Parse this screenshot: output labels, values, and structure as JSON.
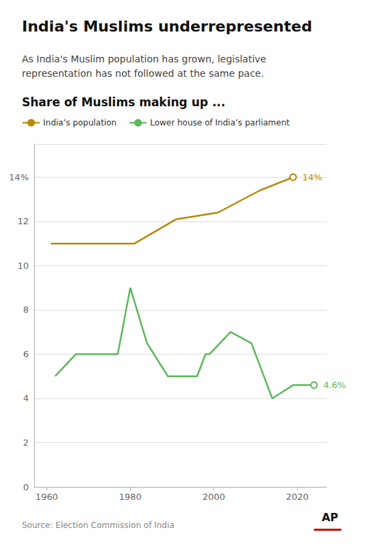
{
  "chart_data": {
    "type": "line",
    "title": "India's Muslims underrepresented",
    "subtitle": "As India's Muslim population has grown, legislative\nrepresentation has not followed at the same pace.",
    "section_title": "Share of Muslims making up ...",
    "source": "Source: Election Commission of India",
    "logo": "AP",
    "series": [
      {
        "name": "India’s population",
        "color": "#b8860b",
        "marker": "circle",
        "x": [
          1961,
          1971,
          1981,
          1991,
          2001,
          2011,
          2019
        ],
        "values": [
          11.0,
          11.0,
          11.0,
          12.1,
          12.4,
          13.4,
          14.0
        ],
        "value_labels": [
          null,
          null,
          null,
          null,
          null,
          null,
          "14%"
        ]
      },
      {
        "name": "Lower house of India’s parliament",
        "color": "#5cb85c",
        "marker": "circle",
        "x": [
          1962,
          1967,
          1971,
          1977,
          1980,
          1984,
          1989,
          1991,
          1996,
          1998,
          1999,
          2004,
          2009,
          2014,
          2019,
          2024
        ],
        "values": [
          5.0,
          6.0,
          6.0,
          6.0,
          9.0,
          6.5,
          5.0,
          5.0,
          5.0,
          6.0,
          6.0,
          7.0,
          6.5,
          4.0,
          4.6,
          4.6
        ],
        "value_labels": [
          null,
          null,
          null,
          null,
          null,
          null,
          null,
          null,
          null,
          null,
          null,
          null,
          null,
          null,
          null,
          "4.6%"
        ]
      }
    ],
    "xlim": [
      1957,
      2027
    ],
    "ylim": [
      0,
      15.5
    ],
    "xticks": [
      1960,
      1980,
      2000,
      2020
    ],
    "yticks": [
      0,
      2,
      4,
      6,
      8,
      10,
      12,
      {
        "value": 14,
        "label": "14%"
      }
    ],
    "grid": true,
    "legend": "upper left"
  }
}
